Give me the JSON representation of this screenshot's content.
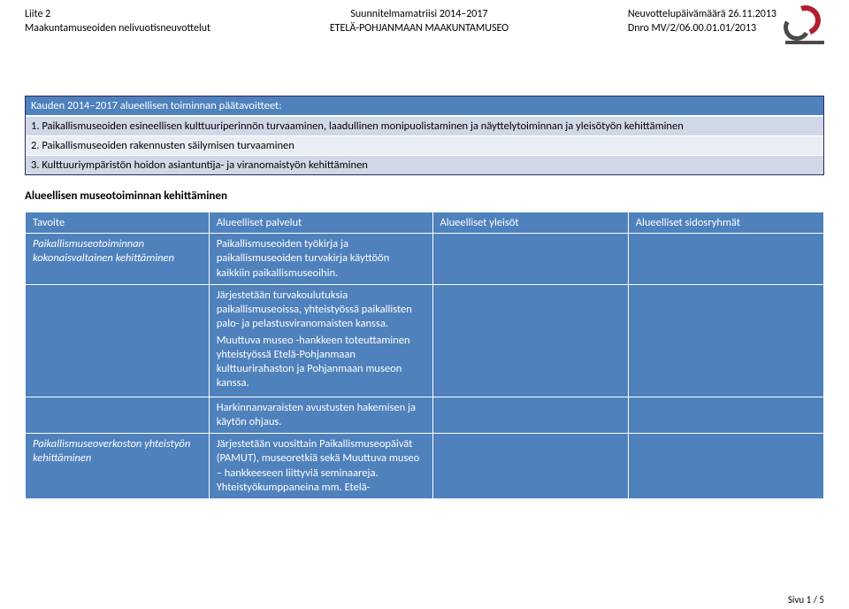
{
  "header": {
    "left": {
      "line1": "Liite 2",
      "line2": "Maakuntamuseoiden nelivuotisneuvottelut"
    },
    "center": {
      "line1": "Suunnitelmamatriisi 2014–2017",
      "line2": "ETELÄ-POHJANMAAN MAAKUNTAMUSEO"
    },
    "right": {
      "line1": "Neuvottelupäivämäärä 26.11.2013",
      "line2": "Dnro MV/2/06.00.01.01/2013"
    }
  },
  "goals": {
    "title": "Kauden 2014–2017 alueellisen toiminnan päätavoitteet:",
    "items": [
      "1. Paikallismuseoiden esineellisen kulttuuriperinnön turvaaminen, laadullinen monipuolistaminen ja näyttelytoiminnan ja yleisötyön kehittäminen",
      "2. Paikallismuseoiden rakennusten säilymisen turvaaminen",
      "3. Kulttuuriympäristön hoidon asiantuntija- ja viranomaistyön kehittäminen"
    ]
  },
  "section_title": "Alueellisen museotoiminnan kehittäminen",
  "table": {
    "headers": [
      "Tavoite",
      "Alueelliset palvelut",
      "Alueelliset yleisöt",
      "Alueelliset sidosryhmät"
    ],
    "rows": [
      {
        "label": "Paikallismuseotoiminnan kokonaisvaltainen kehittäminen",
        "services": "Paikallismuseoiden työkirja ja paikallismuseoiden turvakirja käyttöön kaikkiin paikallismuseoihin.",
        "audiences": "",
        "stakeholders": ""
      },
      {
        "label": "",
        "services_multi": [
          "Järjestetään turvakoulutuksia paikallismuseoissa, yhteistyössä paikallisten palo- ja pelastusviranomaisten kanssa.",
          "Muuttuva museo -hankkeen toteuttaminen yhteistyössä Etelä-Pohjanmaan kulttuurirahaston ja Pohjanmaan museon kanssa."
        ],
        "audiences": "",
        "stakeholders": ""
      },
      {
        "label": "",
        "services": "Harkinnanvaraisten avustusten hakemisen ja käytön ohjaus.",
        "audiences": "",
        "stakeholders": ""
      },
      {
        "label": "Paikallismuseoverkoston yhteistyön kehittäminen",
        "services": "Järjestetään vuosittain Paikallismuseopäivät (PAMUT), museoretkiä sekä Muuttuva museo – hankkeeseen liittyviä seminaareja. Yhteistyökumppaneina mm. Etelä-",
        "audiences": "",
        "stakeholders": ""
      }
    ]
  },
  "footer": "Sivu 1 / 5",
  "colors": {
    "header_blue": "#4f81bd",
    "row_alt1": "#d0d8e8",
    "row_alt2": "#e9edf4",
    "logo_red": "#b01f2e",
    "logo_grey": "#4a4a4a"
  }
}
